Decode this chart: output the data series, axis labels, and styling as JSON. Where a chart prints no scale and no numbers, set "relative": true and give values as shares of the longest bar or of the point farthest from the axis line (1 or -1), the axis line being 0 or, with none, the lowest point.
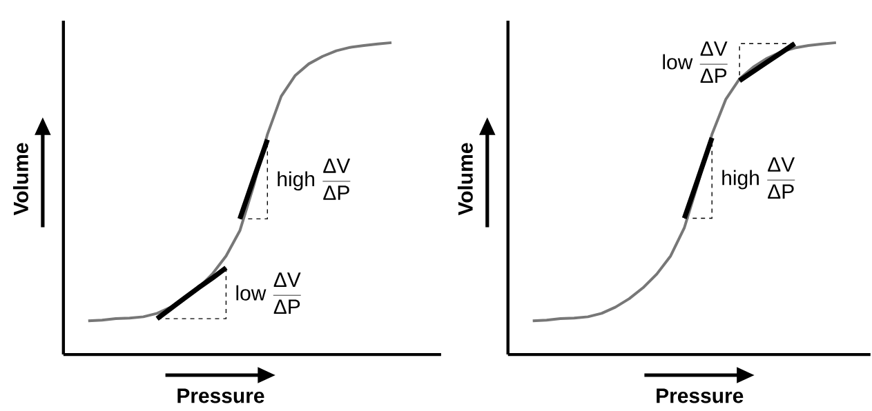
{
  "chart_data": [
    {
      "type": "line",
      "relative": true,
      "marker": "none",
      "xlabel": "Pressure",
      "ylabel": "Volume",
      "categories": [
        null,
        null,
        null,
        null,
        null,
        null,
        null,
        null,
        null,
        null,
        null,
        null,
        null,
        null,
        null,
        null,
        null,
        null,
        null,
        null,
        null,
        null,
        null
      ],
      "series": [
        {
          "color": "#777777",
          "values": [
            0.108,
            0.11,
            0.115,
            0.117,
            0.121,
            0.132,
            0.152,
            0.179,
            0.214,
            0.258,
            0.316,
            0.397,
            0.541,
            0.706,
            0.828,
            0.894,
            0.932,
            0.956,
            0.974,
            0.985,
            0.991,
            0.996,
            1
          ]
        },
        {
          "color": "#000000",
          "values": [
            null,
            null,
            null,
            null,
            null,
            0.115,
            0.148,
            0.181,
            0.214,
            0.245,
            0.278,
            null,
            null,
            null,
            null,
            null,
            null,
            null,
            null,
            null,
            null,
            null,
            null
          ]
        },
        {
          "color": "#000000",
          "values": [
            null,
            null,
            null,
            null,
            null,
            null,
            null,
            null,
            null,
            null,
            null,
            0.435,
            0.563,
            0.689,
            null,
            null,
            null,
            null,
            null,
            null,
            null,
            null,
            null
          ]
        }
      ],
      "annotations": [
        "\\textsf{low}\\;\\frac{\\textsf{ΔV}}{\\textsf{ΔP}}",
        "\\textsf{high}\\;\\frac{\\textsf{ΔV}}{\\textsf{ΔP}}"
      ]
    },
    {
      "type": "line",
      "relative": true,
      "marker": "none",
      "xlabel": "Pressure",
      "ylabel": "Volume",
      "categories": [
        null,
        null,
        null,
        null,
        null,
        null,
        null,
        null,
        null,
        null,
        null,
        null,
        null,
        null,
        null,
        null,
        null,
        null,
        null,
        null,
        null,
        null,
        null
      ],
      "series": [
        {
          "color": "#777777",
          "values": [
            0.108,
            0.11,
            0.115,
            0.117,
            0.121,
            0.132,
            0.152,
            0.179,
            0.214,
            0.258,
            0.316,
            0.407,
            0.551,
            0.706,
            0.818,
            0.884,
            0.922,
            0.95,
            0.97,
            0.983,
            0.991,
            0.996,
            1
          ]
        },
        {
          "color": "#000000",
          "values": [
            null,
            null,
            null,
            null,
            null,
            null,
            null,
            null,
            null,
            null,
            null,
            0.437,
            0.565,
            0.695,
            null,
            null,
            null,
            null,
            null,
            null,
            null,
            null,
            null
          ]
        },
        {
          "color": "#000000",
          "values": [
            null,
            null,
            null,
            null,
            null,
            null,
            null,
            null,
            null,
            null,
            null,
            null,
            null,
            null,
            null,
            0.878,
            0.908,
            0.938,
            0.967,
            0.997,
            null,
            null,
            null
          ]
        }
      ],
      "annotations": [
        "\\textsf{high}\\;\\frac{\\textsf{ΔV}}{\\textsf{ΔP}}",
        "\\textsf{low}\\;\\frac{\\textsf{ΔV}}{\\textsf{ΔP}}"
      ]
    }
  ]
}
